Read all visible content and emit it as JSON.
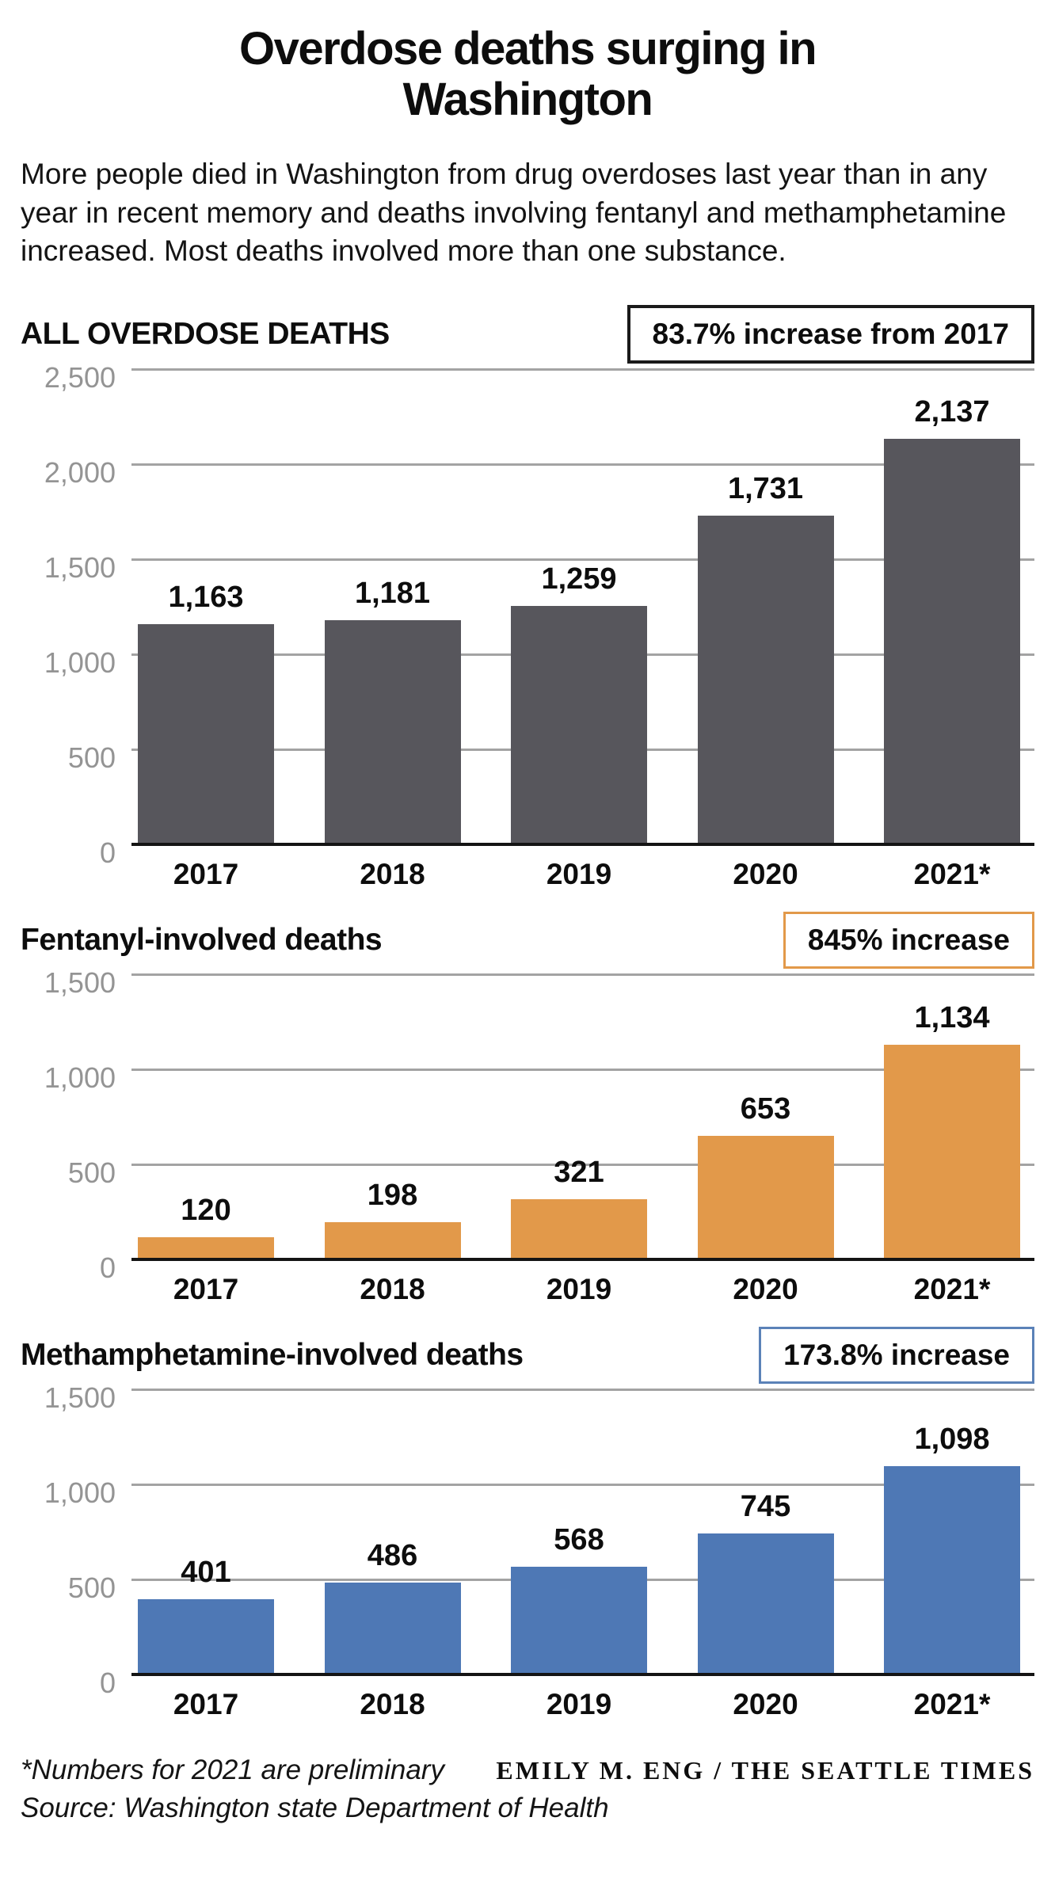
{
  "header": {
    "title_lines": [
      "Overdose deaths surging in",
      "Washington"
    ],
    "subtitle": "More people died in Washington from drug overdoses last year than in any year in recent memory and deaths involving fentanyl and methamphetamine increased. Most deaths involved more than one substance."
  },
  "chart_data": [
    {
      "type": "bar",
      "title": "ALL OVERDOSE DEATHS",
      "badge": "83.7% increase from 2017",
      "badge_border_color": "#1a1a1a",
      "badge_border_width": 4,
      "bar_color": "#57565C",
      "categories": [
        "2017",
        "2018",
        "2019",
        "2020",
        "2021*"
      ],
      "values": [
        1163,
        1181,
        1259,
        1731,
        2137
      ],
      "value_labels": [
        "1,163",
        "1,181",
        "1,259",
        "1,731",
        "2,137"
      ],
      "ylim": [
        0,
        2500
      ],
      "grid": true,
      "legend": false,
      "yticks": [
        {
          "v": 2500,
          "label": "2,500"
        },
        {
          "v": 2000,
          "label": "2,000"
        },
        {
          "v": 1500,
          "label": "1,500"
        },
        {
          "v": 1000,
          "label": "1,000"
        },
        {
          "v": 500,
          "label": "500"
        },
        {
          "v": 0,
          "label": "0"
        }
      ]
    },
    {
      "type": "bar",
      "title": "Fentanyl-involved deaths",
      "badge": "845% increase",
      "badge_border_color": "#E2994A",
      "badge_border_width": 3,
      "bar_color": "#E2994A",
      "categories": [
        "2017",
        "2018",
        "2019",
        "2020",
        "2021*"
      ],
      "values": [
        120,
        198,
        321,
        653,
        1134
      ],
      "value_labels": [
        "120",
        "198",
        "321",
        "653",
        "1,134"
      ],
      "ylim": [
        0,
        1500
      ],
      "grid": true,
      "legend": false,
      "yticks": [
        {
          "v": 1500,
          "label": "1,500"
        },
        {
          "v": 1000,
          "label": "1,000"
        },
        {
          "v": 500,
          "label": "500"
        },
        {
          "v": 0,
          "label": "0"
        }
      ]
    },
    {
      "type": "bar",
      "title": "Methamphetamine-involved deaths",
      "badge": "173.8% increase",
      "badge_border_color": "#5B82B8",
      "badge_border_width": 3,
      "bar_color": "#4E78B5",
      "categories": [
        "2017",
        "2018",
        "2019",
        "2020",
        "2021*"
      ],
      "values": [
        401,
        486,
        568,
        745,
        1098
      ],
      "value_labels": [
        "401",
        "486",
        "568",
        "745",
        "1,098"
      ],
      "ylim": [
        0,
        1500
      ],
      "grid": true,
      "legend": false,
      "yticks": [
        {
          "v": 1500,
          "label": "1,500"
        },
        {
          "v": 1000,
          "label": "1,000"
        },
        {
          "v": 500,
          "label": "500"
        },
        {
          "v": 0,
          "label": "0"
        }
      ]
    }
  ],
  "footer": {
    "note": "*Numbers for 2021 are preliminary",
    "credit": "EMILY M. ENG / THE SEATTLE TIMES",
    "source": "Source: Washington state Department of Health"
  }
}
